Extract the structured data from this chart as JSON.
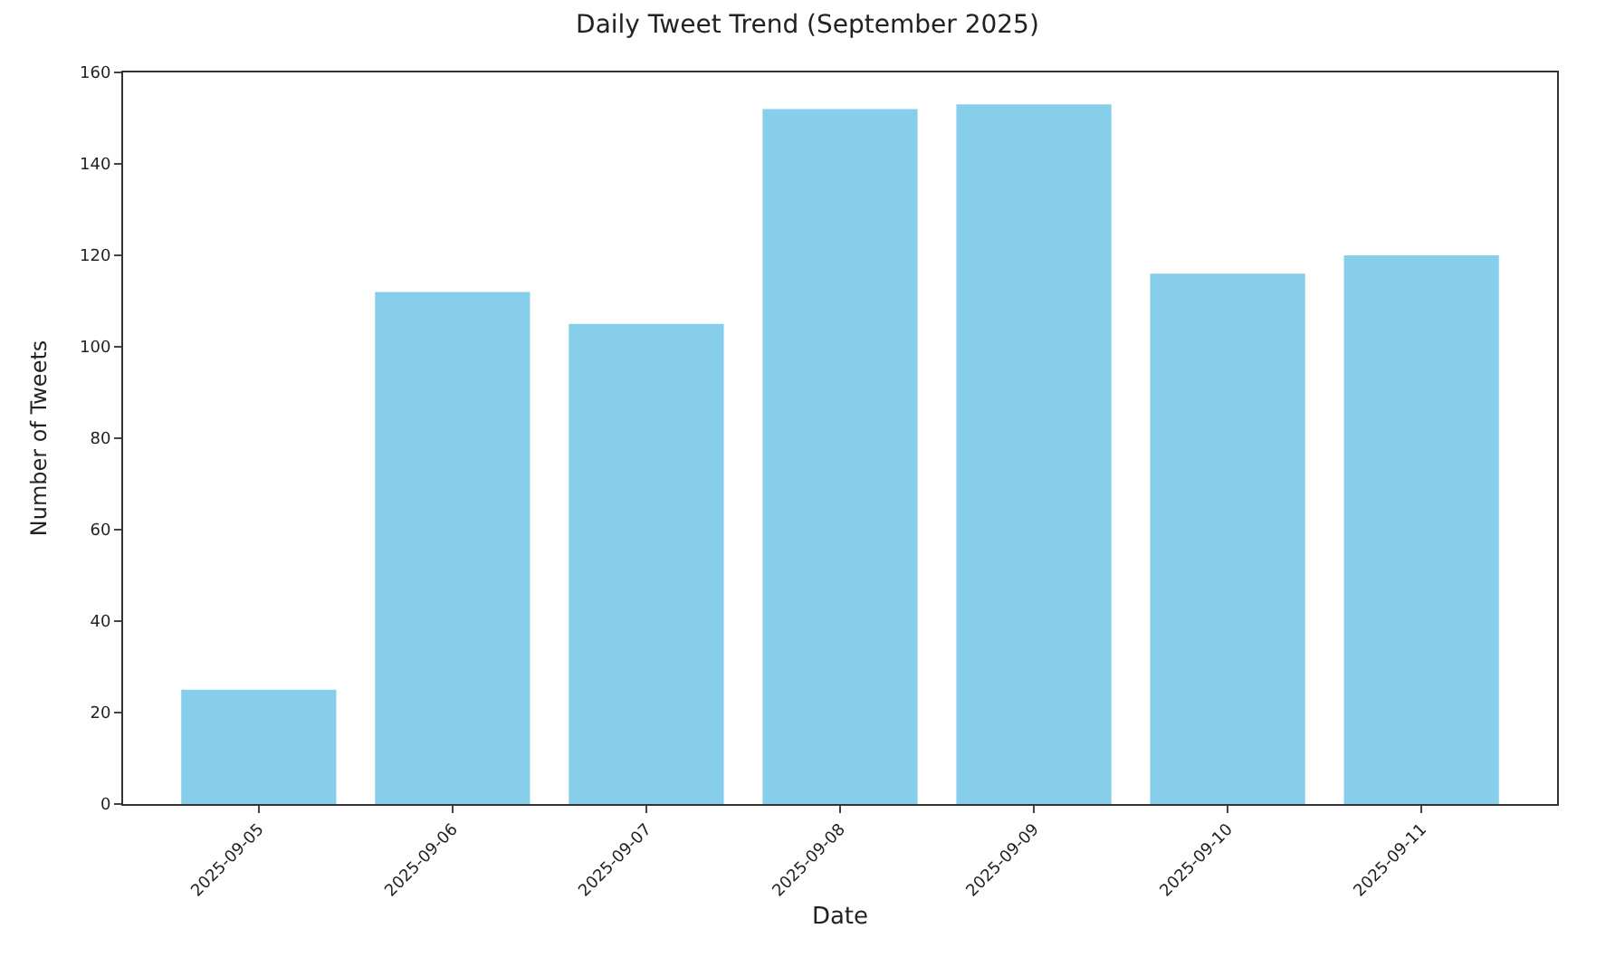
{
  "chart_data": {
    "type": "bar",
    "title": "Daily Tweet Trend (September 2025)",
    "xlabel": "Date",
    "ylabel": "Number of Tweets",
    "categories": [
      "2025-09-05",
      "2025-09-06",
      "2025-09-07",
      "2025-09-08",
      "2025-09-09",
      "2025-09-10",
      "2025-09-11"
    ],
    "values": [
      25,
      112,
      105,
      152,
      153,
      116,
      120
    ],
    "color": "#87ceeb",
    "ylim": [
      0,
      160
    ],
    "yticks": [
      0,
      20,
      40,
      60,
      80,
      100,
      120,
      140,
      160
    ]
  }
}
